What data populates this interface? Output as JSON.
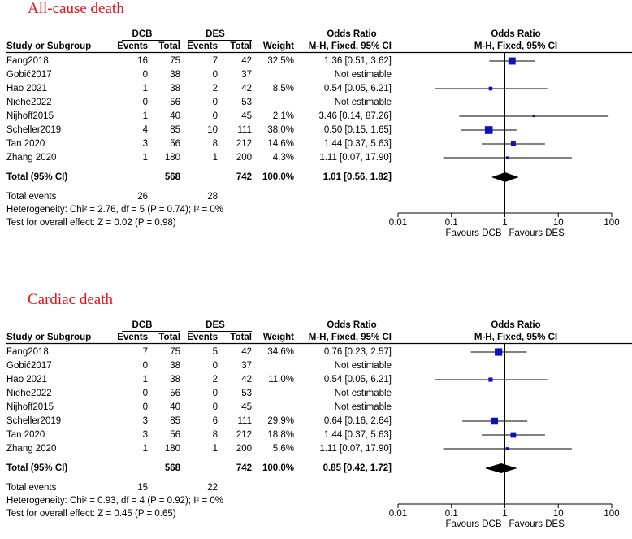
{
  "chart_data": [
    {
      "type": "forest",
      "title": "All-cause death",
      "group_headers": {
        "experimental": "DCB",
        "control": "DES",
        "or_header": "Odds Ratio",
        "plot_header": "Odds Ratio"
      },
      "columns": {
        "study": "Study or Subgroup",
        "events": "Events",
        "total": "Total",
        "weight": "Weight",
        "method": "M-H, Fixed, 95% CI"
      },
      "studies": [
        {
          "name": "Fang2018",
          "e1": "16",
          "t1": "75",
          "e2": "7",
          "t2": "42",
          "weight": "32.5%",
          "or_text": "1.36 [0.51, 3.62]",
          "or": 1.36,
          "lo": 0.51,
          "hi": 3.62,
          "w": 32.5
        },
        {
          "name": "Gobić2017",
          "e1": "0",
          "t1": "38",
          "e2": "0",
          "t2": "37",
          "weight": "",
          "or_text": "Not estimable"
        },
        {
          "name": "Hao 2021",
          "e1": "1",
          "t1": "38",
          "e2": "2",
          "t2": "42",
          "weight": "8.5%",
          "or_text": "0.54 [0.05, 6.21]",
          "or": 0.54,
          "lo": 0.05,
          "hi": 6.21,
          "w": 8.5
        },
        {
          "name": "Niehe2022",
          "e1": "0",
          "t1": "56",
          "e2": "0",
          "t2": "53",
          "weight": "",
          "or_text": "Not estimable"
        },
        {
          "name": "Nijhoff2015",
          "e1": "1",
          "t1": "40",
          "e2": "0",
          "t2": "45",
          "weight": "2.1%",
          "or_text": "3.46 [0.14, 87.26]",
          "or": 3.46,
          "lo": 0.14,
          "hi": 87.26,
          "w": 2.1
        },
        {
          "name": "Scheller2019",
          "e1": "4",
          "t1": "85",
          "e2": "10",
          "t2": "111",
          "weight": "38.0%",
          "or_text": "0.50 [0.15, 1.65]",
          "or": 0.5,
          "lo": 0.15,
          "hi": 1.65,
          "w": 38.0
        },
        {
          "name": "Tan 2020",
          "e1": "3",
          "t1": "56",
          "e2": "8",
          "t2": "212",
          "weight": "14.6%",
          "or_text": "1.44 [0.37, 5.63]",
          "or": 1.44,
          "lo": 0.37,
          "hi": 5.63,
          "w": 14.6
        },
        {
          "name": "Zhang 2020",
          "e1": "1",
          "t1": "180",
          "e2": "1",
          "t2": "200",
          "weight": "4.3%",
          "or_text": "1.11 [0.07, 17.90]",
          "or": 1.11,
          "lo": 0.07,
          "hi": 17.9,
          "w": 4.3
        }
      ],
      "total": {
        "label": "Total (95% CI)",
        "t1": "568",
        "t2": "742",
        "weight": "100.0%",
        "or_text": "1.01 [0.56, 1.82]",
        "or": 1.01,
        "lo": 0.56,
        "hi": 1.82
      },
      "total_events": {
        "label": "Total events",
        "e1": "26",
        "e2": "28"
      },
      "heterogeneity": "Heterogeneity: Chi² = 2.76, df = 5 (P = 0.74); I² = 0%",
      "overall_effect": "Test for overall effect: Z = 0.02 (P = 0.98)",
      "axis": {
        "scale": "log",
        "ticks": [
          "0.01",
          "0.1",
          "1",
          "10",
          "100"
        ],
        "range": [
          0.01,
          100
        ]
      },
      "favours": {
        "left": "Favours DCB",
        "right": "Favours DES"
      }
    },
    {
      "type": "forest",
      "title": "Cardiac death",
      "group_headers": {
        "experimental": "DCB",
        "control": "DES",
        "or_header": "Odds Ratio",
        "plot_header": "Odds Ratio"
      },
      "columns": {
        "study": "Study or Subgroup",
        "events": "Events",
        "total": "Total",
        "weight": "Weight",
        "method": "M-H, Fixed, 95% CI"
      },
      "studies": [
        {
          "name": "Fang2018",
          "e1": "7",
          "t1": "75",
          "e2": "5",
          "t2": "42",
          "weight": "34.6%",
          "or_text": "0.76 [0.23, 2.57]",
          "or": 0.76,
          "lo": 0.23,
          "hi": 2.57,
          "w": 34.6
        },
        {
          "name": "Gobić2017",
          "e1": "0",
          "t1": "38",
          "e2": "0",
          "t2": "37",
          "weight": "",
          "or_text": "Not estimable"
        },
        {
          "name": "Hao 2021",
          "e1": "1",
          "t1": "38",
          "e2": "2",
          "t2": "42",
          "weight": "11.0%",
          "or_text": "0.54 [0.05, 6.21]",
          "or": 0.54,
          "lo": 0.05,
          "hi": 6.21,
          "w": 11.0
        },
        {
          "name": "Niehe2022",
          "e1": "0",
          "t1": "56",
          "e2": "0",
          "t2": "53",
          "weight": "",
          "or_text": "Not estimable"
        },
        {
          "name": "Nijhoff2015",
          "e1": "0",
          "t1": "40",
          "e2": "0",
          "t2": "45",
          "weight": "",
          "or_text": "Not estimable"
        },
        {
          "name": "Scheller2019",
          "e1": "3",
          "t1": "85",
          "e2": "6",
          "t2": "111",
          "weight": "29.9%",
          "or_text": "0.64 [0.16, 2.64]",
          "or": 0.64,
          "lo": 0.16,
          "hi": 2.64,
          "w": 29.9
        },
        {
          "name": "Tan 2020",
          "e1": "3",
          "t1": "56",
          "e2": "8",
          "t2": "212",
          "weight": "18.8%",
          "or_text": "1.44 [0.37, 5.63]",
          "or": 1.44,
          "lo": 0.37,
          "hi": 5.63,
          "w": 18.8
        },
        {
          "name": "Zhang 2020",
          "e1": "1",
          "t1": "180",
          "e2": "1",
          "t2": "200",
          "weight": "5.6%",
          "or_text": "1.11 [0.07, 17.90]",
          "or": 1.11,
          "lo": 0.07,
          "hi": 17.9,
          "w": 5.6
        }
      ],
      "total": {
        "label": "Total (95% CI)",
        "t1": "568",
        "t2": "742",
        "weight": "100.0%",
        "or_text": "0.85 [0.42, 1.72]",
        "or": 0.85,
        "lo": 0.42,
        "hi": 1.72
      },
      "total_events": {
        "label": "Total events",
        "e1": "15",
        "e2": "22"
      },
      "heterogeneity": "Heterogeneity: Chi² = 0.93, df = 4 (P = 0.92); I² = 0%",
      "overall_effect": "Test for overall effect: Z = 0.45 (P = 0.65)",
      "axis": {
        "scale": "log",
        "ticks": [
          "0.01",
          "0.1",
          "1",
          "10",
          "100"
        ],
        "range": [
          0.01,
          100
        ]
      },
      "favours": {
        "left": "Favours DCB",
        "right": "Favours DES"
      }
    }
  ],
  "colors": {
    "title": "#e8111b",
    "marker": "#1010b8",
    "diamond": "#000000",
    "lines": "#000000"
  }
}
